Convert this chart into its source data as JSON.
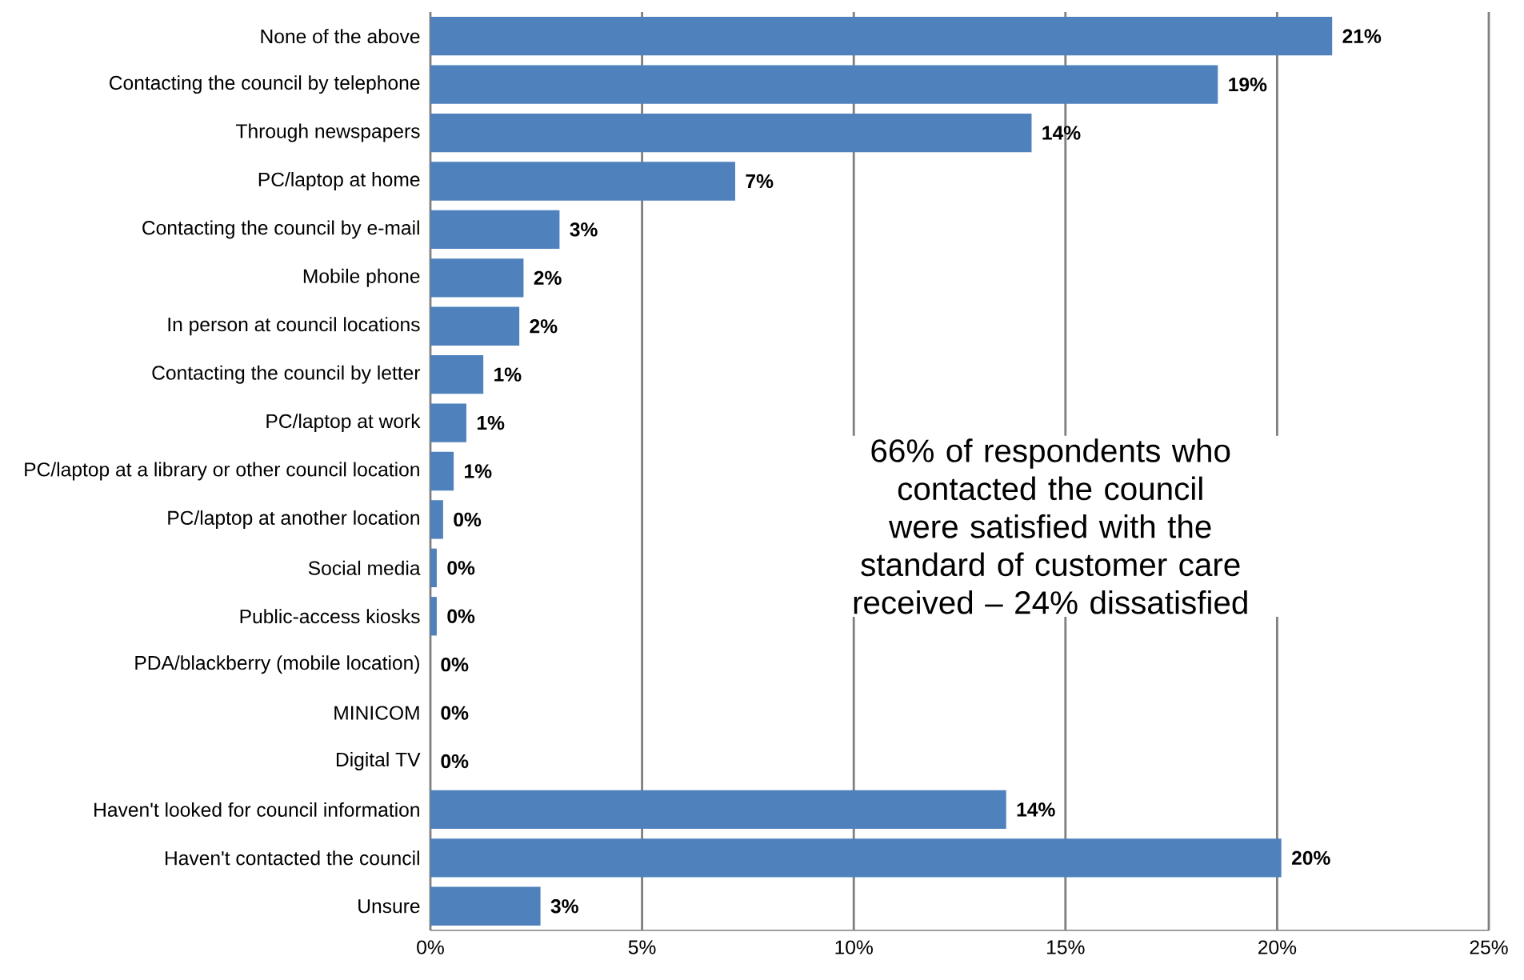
{
  "chart_data": {
    "type": "bar",
    "orientation": "horizontal",
    "categories": [
      "None of the above",
      "Contacting the council by telephone",
      "Through newspapers",
      "PC/laptop at home",
      "Contacting the council by e-mail",
      "Mobile phone",
      "In person at council locations",
      "Contacting the council by letter",
      "PC/laptop at work",
      "PC/laptop at a library or other council location",
      "PC/laptop at another location",
      "Social media",
      "Public-access kiosks",
      "PDA/blackberry (mobile location)",
      "MINICOM",
      "Digital TV",
      "Haven't looked for council information",
      "Haven't contacted the council",
      "Unsure"
    ],
    "values": [
      21.3,
      18.6,
      14.2,
      7.2,
      3.05,
      2.2,
      2.1,
      1.25,
      0.85,
      0.55,
      0.3,
      0.15,
      0.15,
      0,
      0,
      0,
      13.6,
      20.1,
      2.6
    ],
    "value_labels": [
      "21%",
      "19%",
      "14%",
      "7%",
      "3%",
      "2%",
      "2%",
      "1%",
      "1%",
      "1%",
      "0%",
      "0%",
      "0%",
      "0%",
      "0%",
      "0%",
      "14%",
      "20%",
      "3%"
    ],
    "color": "#4f81bd",
    "xlim": [
      0,
      25
    ],
    "xticks": [
      {
        "value": 0,
        "label": "0%"
      },
      {
        "value": 5,
        "label": "5%"
      },
      {
        "value": 10,
        "label": "10%"
      },
      {
        "value": 15,
        "label": "15%"
      },
      {
        "value": 20,
        "label": "20%"
      },
      {
        "value": 25,
        "label": "25%"
      }
    ],
    "grid": "x",
    "annotations": [
      "66% of respondents who contacted the council were satisfied with the standard of customer care received – 24% dissatisfied"
    ]
  }
}
